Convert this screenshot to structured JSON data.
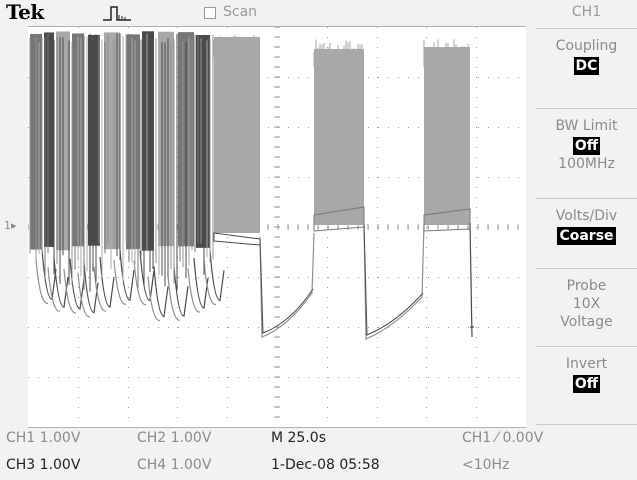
{
  "header": {
    "brand": "Tek",
    "trigger_status_icon": "trigger-pulse-icon",
    "scan_label": "Scan"
  },
  "menu": {
    "title": "CH1",
    "items": [
      {
        "label": "Coupling",
        "value": "DC"
      },
      {
        "label": "BW Limit",
        "value": "Off",
        "sub": "100MHz"
      },
      {
        "label": "Volts/Div",
        "value": "Coarse"
      },
      {
        "label": "Probe",
        "sub1": "10X",
        "sub2": "Voltage"
      },
      {
        "label": "Invert",
        "value": "Off"
      }
    ]
  },
  "status": {
    "ch1": "CH1  1.00V",
    "ch2": "CH2  1.00V",
    "ch3": "CH3  1.00V",
    "ch4": "CH4  1.00V",
    "timebase": "M 25.0s",
    "datetime": "1-Dec-08 05:58",
    "trigger": "CH1 ⁄ 0.00V",
    "trigger_freq": "<10Hz"
  },
  "colors": {
    "grid": "#9a9a9a",
    "ch1": "#a8a8a8",
    "ch2": "#4a4a4a",
    "ch3": "#777777",
    "ch4": "#909090"
  }
}
